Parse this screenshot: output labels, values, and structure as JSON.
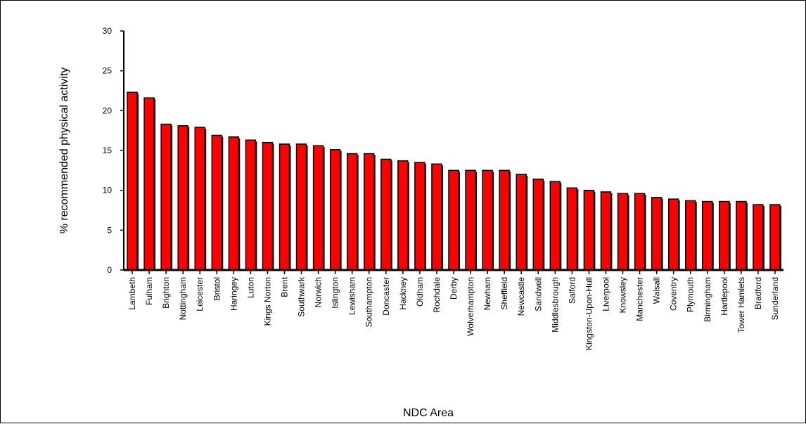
{
  "chart_data": {
    "type": "bar",
    "title": "",
    "xlabel": "NDC Area",
    "ylabel": "% recommended physical activity",
    "ylim": [
      0,
      30
    ],
    "yticks": [
      0,
      5,
      10,
      15,
      20,
      25,
      30
    ],
    "grid": false,
    "legend": "none",
    "categories": [
      "Lambeth",
      "Fulham",
      "Brighton",
      "Nottingham",
      "Leicester",
      "Bristol",
      "Haringey",
      "Luton",
      "Kings Norton",
      "Brent",
      "Southwark",
      "Norwich",
      "Islington",
      "Lewisham",
      "Southampton",
      "Doncaster",
      "Hackney",
      "Oldham",
      "Rochdale",
      "Derby",
      "Wolverhampton",
      "Newham",
      "Sheffield",
      "Newcastle",
      "Sandwell",
      "Middlesbrough",
      "Salford",
      "Kingston-Upon-Hull",
      "Liverpool",
      "Knowsley",
      "Manchester",
      "Walsall",
      "Coventry",
      "Plymouth",
      "Birmingham",
      "Hartlepool",
      "Tower Hamlets",
      "Bradford",
      "Sunderland"
    ],
    "values": [
      22.3,
      21.6,
      18.3,
      18.1,
      17.9,
      16.9,
      16.7,
      16.3,
      16.0,
      15.8,
      15.8,
      15.6,
      15.1,
      14.6,
      14.6,
      13.9,
      13.7,
      13.5,
      13.3,
      12.5,
      12.5,
      12.5,
      12.5,
      12.0,
      11.4,
      11.1,
      10.3,
      10.0,
      9.8,
      9.6,
      9.6,
      9.1,
      8.9,
      8.7,
      8.6,
      8.6,
      8.6,
      8.2,
      8.2
    ],
    "colors": {
      "bar_fill": "#ff0000",
      "bar_edge": "#000000"
    }
  }
}
